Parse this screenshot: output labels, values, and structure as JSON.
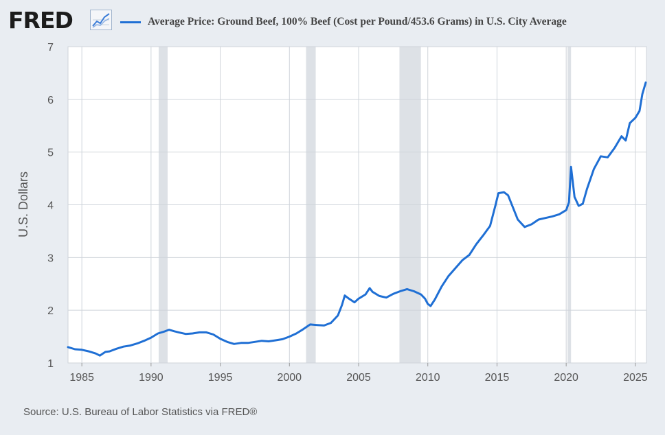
{
  "header": {
    "logo": "FRED",
    "logo_icon": "line-chart-icon",
    "legend_label": "Average Price: Ground Beef, 100% Beef (Cost per Pound/453.6 Grams) in U.S. City Average"
  },
  "footer": {
    "source": "Source: U.S. Bureau of Labor Statistics via FRED®"
  },
  "colors": {
    "series": "#1f6fd4",
    "recession": "#dde1e6",
    "gridline": "#cfd4da",
    "plot_background": "#ffffff",
    "page_background": "#e9edf2"
  },
  "chart_data": {
    "type": "line",
    "title": "",
    "xlabel": "",
    "ylabel": "U.S. Dollars",
    "xlim": [
      1984.0,
      2025.8
    ],
    "ylim": [
      1,
      7
    ],
    "x_ticks": [
      1985,
      1990,
      1995,
      2000,
      2005,
      2010,
      2015,
      2020,
      2025
    ],
    "y_ticks": [
      1,
      2,
      3,
      4,
      5,
      6,
      7
    ],
    "grid": true,
    "recessions": [
      [
        1990.55,
        1991.2
      ],
      [
        2001.2,
        2001.9
      ],
      [
        2007.95,
        2009.5
      ],
      [
        2020.1,
        2020.35
      ]
    ],
    "series": [
      {
        "values": [
          [
            1984.0,
            1.3
          ],
          [
            1984.5,
            1.26
          ],
          [
            1985.0,
            1.25
          ],
          [
            1985.5,
            1.22
          ],
          [
            1986.0,
            1.18
          ],
          [
            1986.3,
            1.14
          ],
          [
            1986.7,
            1.21
          ],
          [
            1987.0,
            1.22
          ],
          [
            1987.5,
            1.27
          ],
          [
            1988.0,
            1.31
          ],
          [
            1988.5,
            1.33
          ],
          [
            1989.0,
            1.37
          ],
          [
            1989.5,
            1.42
          ],
          [
            1990.0,
            1.48
          ],
          [
            1990.5,
            1.56
          ],
          [
            1991.0,
            1.6
          ],
          [
            1991.3,
            1.63
          ],
          [
            1991.7,
            1.6
          ],
          [
            1992.0,
            1.58
          ],
          [
            1992.5,
            1.55
          ],
          [
            1993.0,
            1.56
          ],
          [
            1993.5,
            1.58
          ],
          [
            1994.0,
            1.58
          ],
          [
            1994.5,
            1.54
          ],
          [
            1995.0,
            1.46
          ],
          [
            1995.5,
            1.4
          ],
          [
            1996.0,
            1.36
          ],
          [
            1996.5,
            1.38
          ],
          [
            1997.0,
            1.38
          ],
          [
            1997.5,
            1.4
          ],
          [
            1998.0,
            1.42
          ],
          [
            1998.5,
            1.41
          ],
          [
            1999.0,
            1.43
          ],
          [
            1999.5,
            1.45
          ],
          [
            2000.0,
            1.5
          ],
          [
            2000.5,
            1.56
          ],
          [
            2001.0,
            1.64
          ],
          [
            2001.5,
            1.73
          ],
          [
            2002.0,
            1.72
          ],
          [
            2002.5,
            1.71
          ],
          [
            2003.0,
            1.76
          ],
          [
            2003.5,
            1.9
          ],
          [
            2003.8,
            2.1
          ],
          [
            2004.0,
            2.28
          ],
          [
            2004.3,
            2.22
          ],
          [
            2004.7,
            2.15
          ],
          [
            2005.0,
            2.22
          ],
          [
            2005.5,
            2.3
          ],
          [
            2005.8,
            2.42
          ],
          [
            2006.0,
            2.35
          ],
          [
            2006.5,
            2.27
          ],
          [
            2007.0,
            2.24
          ],
          [
            2007.5,
            2.31
          ],
          [
            2008.0,
            2.36
          ],
          [
            2008.5,
            2.4
          ],
          [
            2009.0,
            2.36
          ],
          [
            2009.5,
            2.3
          ],
          [
            2009.8,
            2.22
          ],
          [
            2010.0,
            2.12
          ],
          [
            2010.2,
            2.08
          ],
          [
            2010.5,
            2.2
          ],
          [
            2011.0,
            2.45
          ],
          [
            2011.5,
            2.65
          ],
          [
            2012.0,
            2.8
          ],
          [
            2012.5,
            2.95
          ],
          [
            2013.0,
            3.05
          ],
          [
            2013.5,
            3.25
          ],
          [
            2014.0,
            3.42
          ],
          [
            2014.5,
            3.6
          ],
          [
            2014.9,
            4.0
          ],
          [
            2015.1,
            4.22
          ],
          [
            2015.5,
            4.24
          ],
          [
            2015.8,
            4.18
          ],
          [
            2016.0,
            4.05
          ],
          [
            2016.5,
            3.72
          ],
          [
            2017.0,
            3.58
          ],
          [
            2017.5,
            3.63
          ],
          [
            2018.0,
            3.72
          ],
          [
            2018.5,
            3.75
          ],
          [
            2019.0,
            3.78
          ],
          [
            2019.5,
            3.82
          ],
          [
            2020.0,
            3.9
          ],
          [
            2020.2,
            4.05
          ],
          [
            2020.35,
            4.72
          ],
          [
            2020.6,
            4.15
          ],
          [
            2020.9,
            3.98
          ],
          [
            2021.2,
            4.02
          ],
          [
            2021.5,
            4.3
          ],
          [
            2022.0,
            4.68
          ],
          [
            2022.5,
            4.92
          ],
          [
            2023.0,
            4.9
          ],
          [
            2023.5,
            5.08
          ],
          [
            2024.0,
            5.3
          ],
          [
            2024.3,
            5.22
          ],
          [
            2024.6,
            5.55
          ],
          [
            2025.0,
            5.65
          ],
          [
            2025.3,
            5.78
          ],
          [
            2025.5,
            6.1
          ],
          [
            2025.75,
            6.32
          ]
        ]
      }
    ]
  }
}
